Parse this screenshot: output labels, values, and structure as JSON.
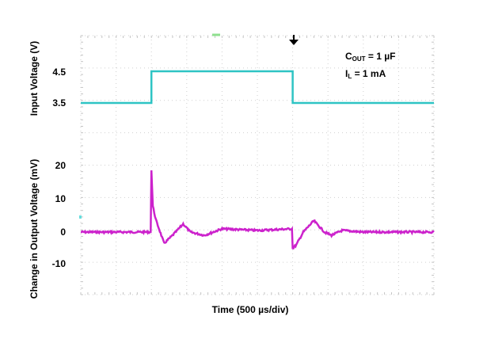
{
  "chart_data": {
    "type": "line",
    "title": "",
    "xlabel": "Time (500 µs/div)",
    "x_divisions": 10,
    "x_step_us": 500,
    "annotations": [
      "C_OUT = 1 µF",
      "I_L = 1 mA"
    ],
    "grid": true,
    "panels": [
      {
        "name": "Input Voltage",
        "ylabel": "Input Voltage (V)",
        "ytick_labels": [
          "4.5",
          "3.5"
        ],
        "yticks": [
          4.5,
          3.5
        ],
        "color": "#2ec4c4",
        "series": {
          "x_us": [
            0,
            1000,
            1000,
            3000,
            3000,
            5000
          ],
          "values": [
            3.5,
            3.5,
            4.5,
            4.5,
            3.5,
            3.5
          ]
        }
      },
      {
        "name": "Change in Output Voltage",
        "ylabel": "Change in Output Voltage (mV)",
        "ytick_labels": [
          "20",
          "10",
          "0",
          "-10"
        ],
        "yticks": [
          20,
          10,
          0,
          -10
        ],
        "color": "#cc22cc",
        "series": {
          "x_us": [
            0,
            990,
            1000,
            1020,
            1060,
            1180,
            1300,
            1450,
            1550,
            1750,
            2000,
            2500,
            2990,
            3000,
            3050,
            3150,
            3300,
            3450,
            3550,
            3700,
            4000,
            4500,
            5000
          ],
          "values": [
            0,
            0,
            19,
            8,
            4,
            -3.5,
            -1,
            2.5,
            0,
            -1,
            1,
            0.5,
            1,
            -5,
            -4,
            0,
            3.5,
            0,
            -1,
            0.5,
            0,
            0,
            0
          ]
        }
      }
    ]
  },
  "labels": {
    "input_ylabel": "Input Voltage (V)",
    "output_ylabel": "Change in Output Voltage (mV)",
    "xlabel": "Time (500 µs/div)",
    "tick_45": "4.5",
    "tick_35": "3.5",
    "tick_20": "20",
    "tick_10": "10",
    "tick_0": "0",
    "tick_m10": "-10",
    "cout_main": "C",
    "cout_sub": "OUT",
    "cout_value": " = 1 µF",
    "il_main": "I",
    "il_sub": "L",
    "il_value": " = 1 mA"
  },
  "colors": {
    "input_trace": "#2ec4c4",
    "output_trace": "#cc22cc",
    "grid": "#c8c8c8"
  }
}
